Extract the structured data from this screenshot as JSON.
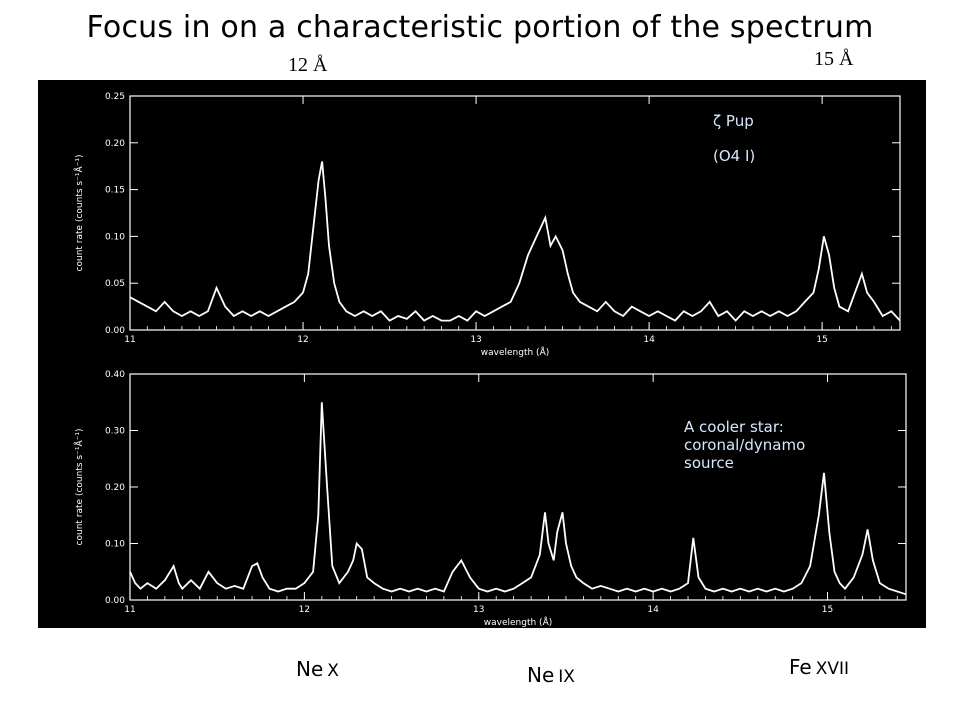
{
  "slide": {
    "title": "Focus in on a characteristic portion of the spectrum",
    "wavelength_marks": [
      "12 Å",
      "15 Å"
    ],
    "line_labels": [
      {
        "element": "Ne",
        "ion": "X",
        "wavelength": 12.13
      },
      {
        "element": "Ne",
        "ion": "IX",
        "wavelength": 13.45
      },
      {
        "element": "Fe",
        "ion": "XVII",
        "wavelength": 15.01
      }
    ]
  },
  "colors": {
    "background": "#000000",
    "trace": "#ffffff",
    "annotation": "#d6e8ff"
  },
  "chart_data": [
    {
      "type": "line",
      "title": "",
      "xlabel": "wavelength (Å)",
      "ylabel": "count rate (counts s⁻¹Å⁻¹)",
      "xlim": [
        11.0,
        15.45
      ],
      "ylim": [
        0,
        0.25
      ],
      "xticks": [
        "11",
        "12",
        "13",
        "14",
        "15"
      ],
      "yticks": [
        "0.00",
        "0.05",
        "0.10",
        "0.15",
        "0.20",
        "0.25"
      ],
      "annotations": [
        "ζ Pup",
        "(O4 I)"
      ],
      "grid": false,
      "series": [
        {
          "x": [
            11.0,
            11.05,
            11.1,
            11.15,
            11.2,
            11.25,
            11.3,
            11.35,
            11.4,
            11.45,
            11.5,
            11.55,
            11.6,
            11.65,
            11.7,
            11.75,
            11.8,
            11.85,
            11.9,
            11.95,
            12.0,
            12.03,
            12.06,
            12.09,
            12.11,
            12.13,
            12.15,
            12.18,
            12.21,
            12.25,
            12.3,
            12.35,
            12.4,
            12.45,
            12.5,
            12.55,
            12.6,
            12.65,
            12.7,
            12.75,
            12.8,
            12.85,
            12.9,
            12.95,
            13.0,
            13.05,
            13.1,
            13.15,
            13.2,
            13.25,
            13.3,
            13.35,
            13.4,
            13.43,
            13.46,
            13.5,
            13.53,
            13.56,
            13.6,
            13.65,
            13.7,
            13.75,
            13.8,
            13.85,
            13.9,
            13.95,
            14.0,
            14.05,
            14.1,
            14.15,
            14.2,
            14.25,
            14.3,
            14.35,
            14.4,
            14.45,
            14.5,
            14.55,
            14.6,
            14.65,
            14.7,
            14.75,
            14.8,
            14.85,
            14.9,
            14.95,
            14.98,
            15.01,
            15.04,
            15.07,
            15.1,
            15.15,
            15.2,
            15.23,
            15.26,
            15.3,
            15.35,
            15.4,
            15.45
          ],
          "y": [
            0.035,
            0.03,
            0.025,
            0.02,
            0.03,
            0.02,
            0.015,
            0.02,
            0.015,
            0.02,
            0.045,
            0.025,
            0.015,
            0.02,
            0.015,
            0.02,
            0.015,
            0.02,
            0.025,
            0.03,
            0.04,
            0.06,
            0.11,
            0.16,
            0.18,
            0.14,
            0.09,
            0.05,
            0.03,
            0.02,
            0.015,
            0.02,
            0.015,
            0.02,
            0.01,
            0.015,
            0.012,
            0.02,
            0.01,
            0.015,
            0.01,
            0.01,
            0.015,
            0.01,
            0.02,
            0.015,
            0.02,
            0.025,
            0.03,
            0.05,
            0.08,
            0.1,
            0.12,
            0.09,
            0.1,
            0.085,
            0.06,
            0.04,
            0.03,
            0.025,
            0.02,
            0.03,
            0.02,
            0.015,
            0.025,
            0.02,
            0.015,
            0.02,
            0.015,
            0.01,
            0.02,
            0.015,
            0.02,
            0.03,
            0.015,
            0.02,
            0.01,
            0.02,
            0.015,
            0.02,
            0.015,
            0.02,
            0.015,
            0.02,
            0.03,
            0.04,
            0.065,
            0.1,
            0.08,
            0.045,
            0.025,
            0.02,
            0.045,
            0.06,
            0.04,
            0.03,
            0.015,
            0.02,
            0.01
          ]
        }
      ]
    },
    {
      "type": "line",
      "title": "",
      "xlabel": "wavelength (Å)",
      "ylabel": "count rate (counts s⁻¹Å⁻¹)",
      "xlim": [
        11.0,
        15.45
      ],
      "ylim": [
        0,
        0.4
      ],
      "xticks": [
        "11",
        "12",
        "13",
        "14",
        "15"
      ],
      "yticks": [
        "0.00",
        "0.10",
        "0.20",
        "0.30",
        "0.40"
      ],
      "annotations": [
        "A cooler star:",
        "coronal/dynamo",
        "source"
      ],
      "grid": false,
      "series": [
        {
          "x": [
            11.0,
            11.03,
            11.06,
            11.1,
            11.15,
            11.2,
            11.25,
            11.28,
            11.3,
            11.35,
            11.4,
            11.45,
            11.5,
            11.55,
            11.6,
            11.65,
            11.7,
            11.73,
            11.76,
            11.8,
            11.85,
            11.9,
            11.95,
            12.0,
            12.05,
            12.08,
            12.1,
            12.13,
            12.16,
            12.2,
            12.25,
            12.28,
            12.3,
            12.33,
            12.36,
            12.4,
            12.45,
            12.5,
            12.55,
            12.6,
            12.65,
            12.7,
            12.75,
            12.8,
            12.85,
            12.9,
            12.95,
            13.0,
            13.05,
            13.1,
            13.15,
            13.2,
            13.25,
            13.3,
            13.35,
            13.38,
            13.4,
            13.43,
            13.45,
            13.48,
            13.5,
            13.53,
            13.56,
            13.6,
            13.65,
            13.7,
            13.75,
            13.8,
            13.85,
            13.9,
            13.95,
            14.0,
            14.05,
            14.1,
            14.15,
            14.2,
            14.23,
            14.26,
            14.3,
            14.35,
            14.4,
            14.45,
            14.5,
            14.55,
            14.6,
            14.65,
            14.7,
            14.75,
            14.8,
            14.85,
            14.9,
            14.95,
            14.98,
            15.01,
            15.04,
            15.07,
            15.1,
            15.15,
            15.2,
            15.23,
            15.26,
            15.3,
            15.35,
            15.4,
            15.45
          ],
          "y": [
            0.05,
            0.03,
            0.02,
            0.03,
            0.02,
            0.035,
            0.06,
            0.03,
            0.02,
            0.035,
            0.02,
            0.05,
            0.03,
            0.02,
            0.025,
            0.02,
            0.06,
            0.065,
            0.04,
            0.02,
            0.015,
            0.02,
            0.02,
            0.03,
            0.05,
            0.15,
            0.35,
            0.2,
            0.06,
            0.03,
            0.05,
            0.07,
            0.1,
            0.09,
            0.04,
            0.03,
            0.02,
            0.015,
            0.02,
            0.015,
            0.02,
            0.015,
            0.02,
            0.015,
            0.05,
            0.07,
            0.04,
            0.02,
            0.015,
            0.02,
            0.015,
            0.02,
            0.03,
            0.04,
            0.08,
            0.155,
            0.1,
            0.07,
            0.12,
            0.155,
            0.1,
            0.06,
            0.04,
            0.03,
            0.02,
            0.025,
            0.02,
            0.015,
            0.02,
            0.015,
            0.02,
            0.015,
            0.02,
            0.015,
            0.02,
            0.03,
            0.11,
            0.04,
            0.02,
            0.015,
            0.02,
            0.015,
            0.02,
            0.015,
            0.02,
            0.015,
            0.02,
            0.015,
            0.02,
            0.03,
            0.06,
            0.15,
            0.225,
            0.12,
            0.05,
            0.03,
            0.02,
            0.04,
            0.08,
            0.125,
            0.07,
            0.03,
            0.02,
            0.015,
            0.01
          ]
        }
      ]
    }
  ]
}
